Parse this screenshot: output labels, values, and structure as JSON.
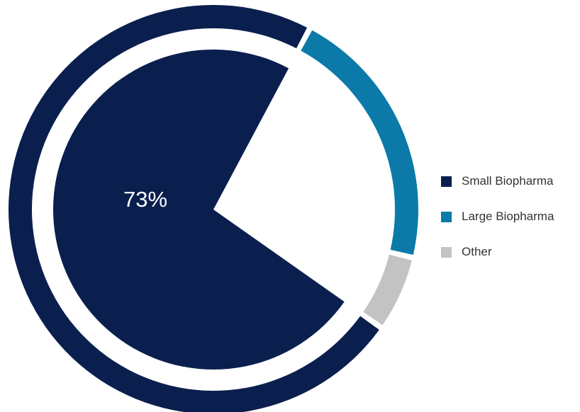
{
  "chart_data": {
    "type": "pie",
    "subtype": "donut-with-inner-pie",
    "series": [
      {
        "name": "Small Biopharma",
        "value": 73,
        "color": "#0a1f4e"
      },
      {
        "name": "Large Biopharma",
        "value": 21,
        "color": "#0b7aa8"
      },
      {
        "name": "Other",
        "value": 6,
        "color": "#c3c3c3"
      }
    ],
    "highlight": {
      "series": "Small Biopharma",
      "label": "73%"
    },
    "legend": "right"
  }
}
